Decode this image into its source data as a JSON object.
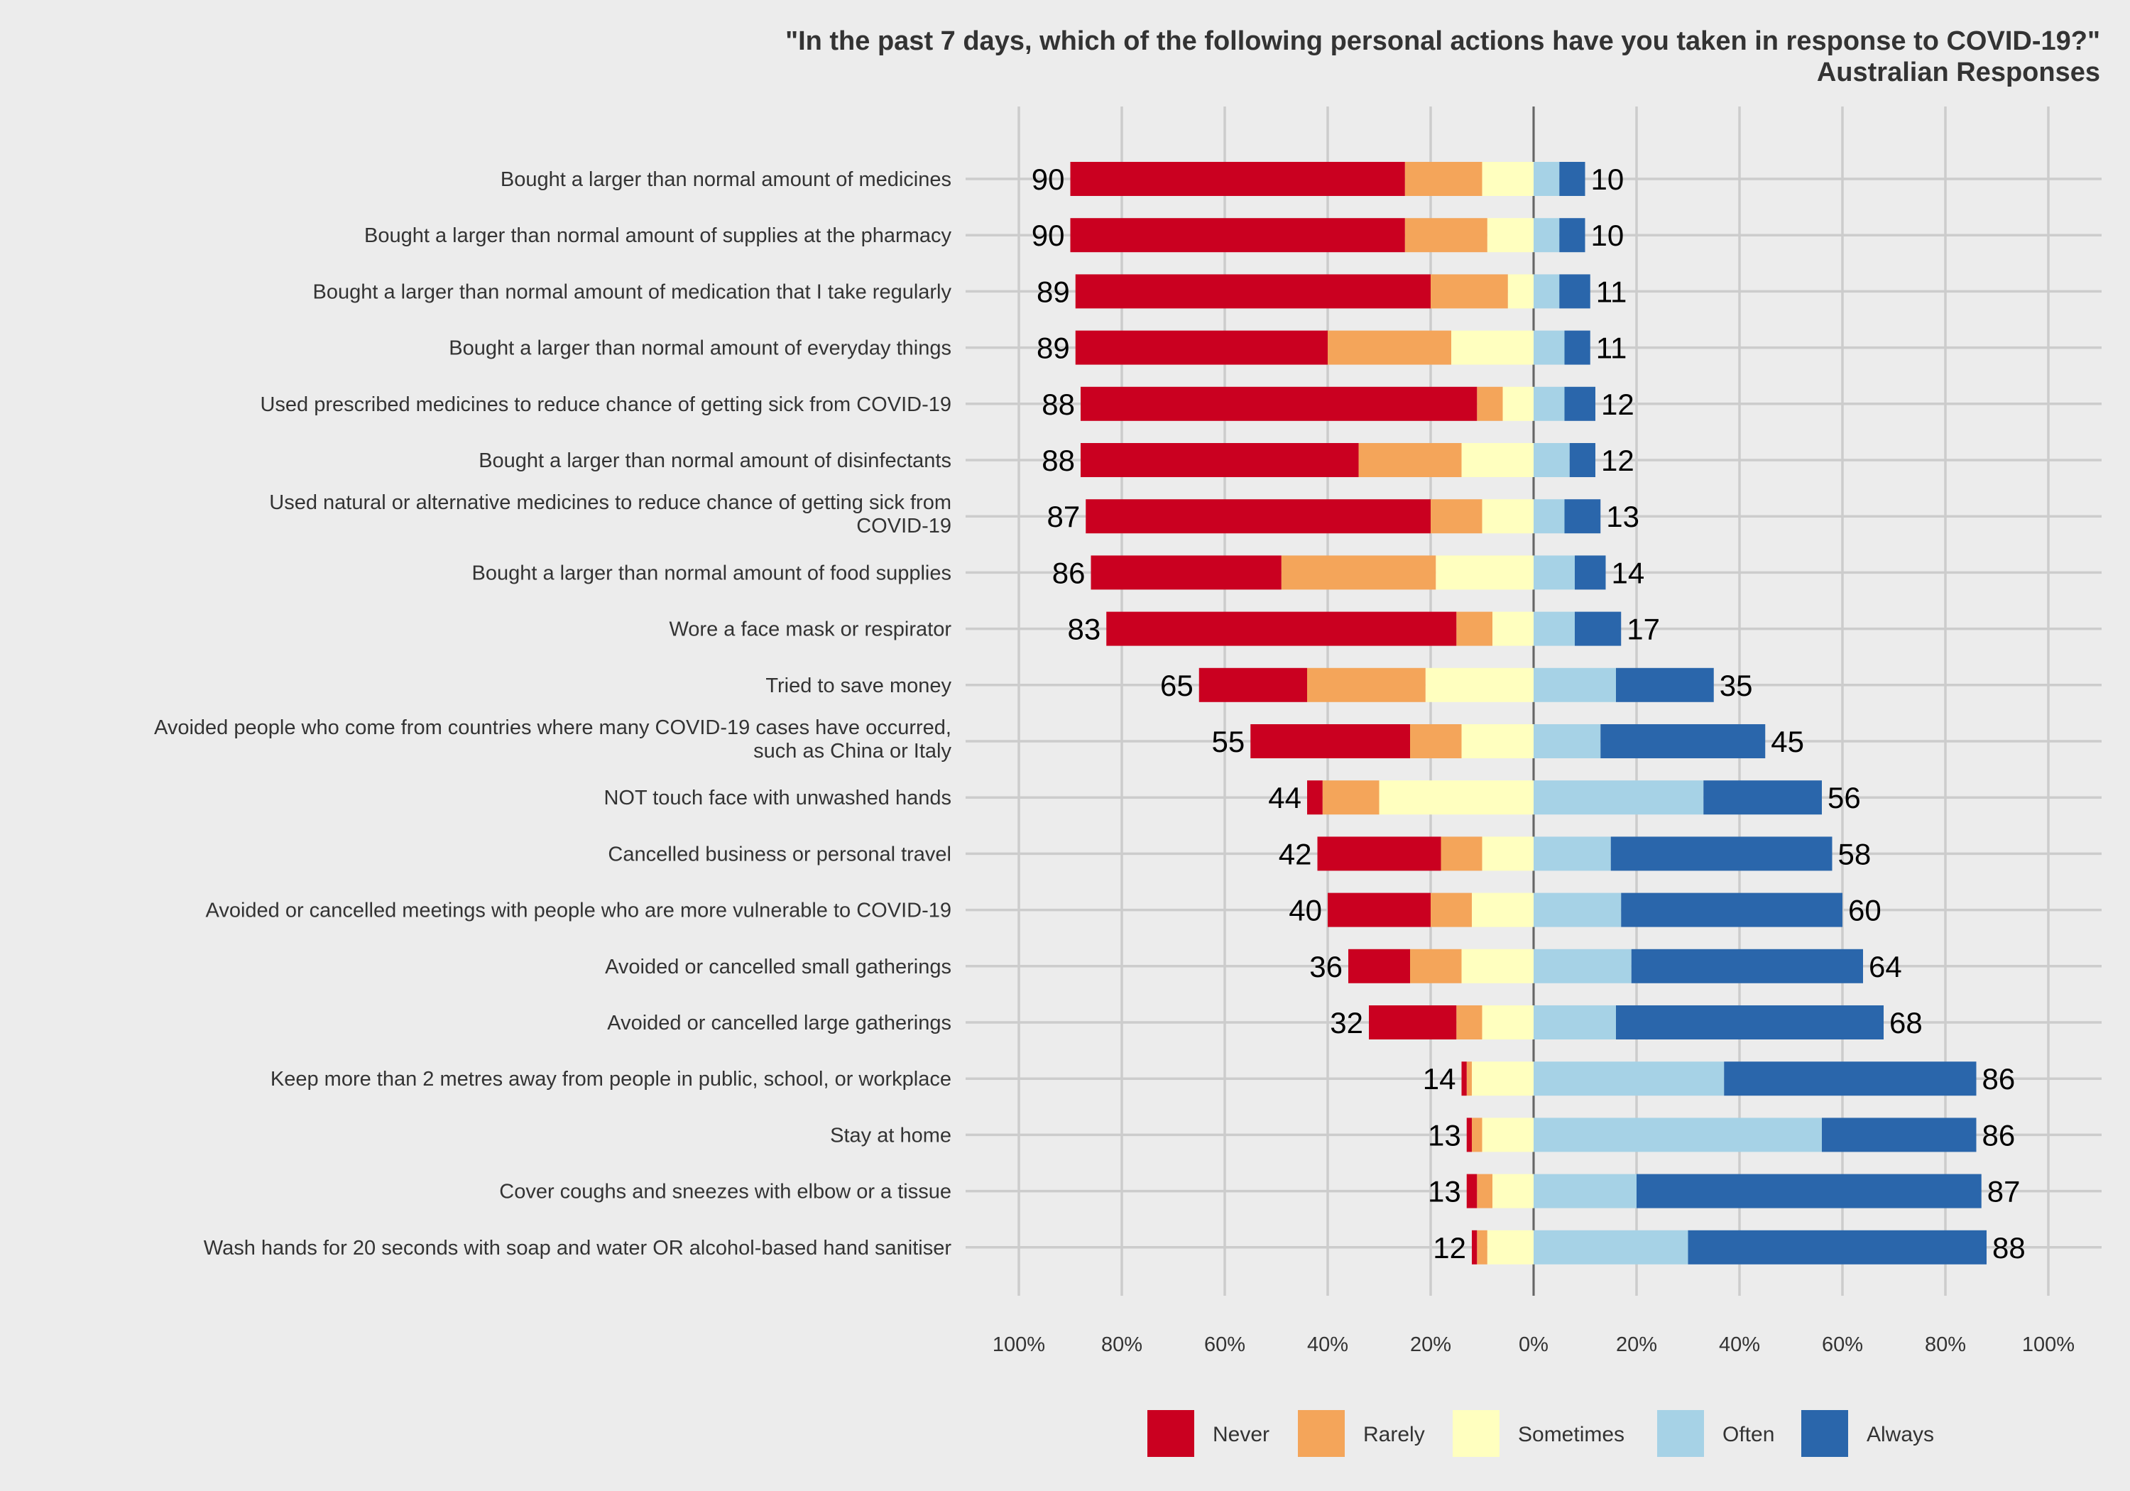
{
  "chart_data": {
    "type": "bar",
    "orientation": "horizontal",
    "stacked": "diverging",
    "title": "\"In the past 7 days, which of the following personal actions have you taken in response to COVID-19?\"",
    "subtitle": "Australian Responses",
    "xlim": [
      -100,
      100
    ],
    "x_ticks": [
      "100%",
      "80%",
      "60%",
      "40%",
      "20%",
      "0%",
      "20%",
      "40%",
      "60%",
      "80%",
      "100%"
    ],
    "grid": true,
    "legend_position": "bottom",
    "series": [
      {
        "name": "Never",
        "color": "#ca0020",
        "values": [
          65,
          65,
          69,
          49,
          77,
          54,
          67,
          37,
          68,
          21,
          31,
          3,
          24,
          20,
          12,
          17,
          1,
          1,
          2,
          1
        ]
      },
      {
        "name": "Rarely",
        "color": "#f4a55a",
        "values": [
          15,
          16,
          15,
          24,
          5,
          20,
          10,
          30,
          7,
          23,
          10,
          11,
          8,
          8,
          10,
          5,
          1,
          2,
          3,
          2
        ]
      },
      {
        "name": "Sometimes",
        "color": "#ffffbf",
        "values": [
          10,
          9,
          5,
          16,
          6,
          14,
          10,
          19,
          8,
          21,
          14,
          30,
          10,
          12,
          14,
          10,
          12,
          10,
          8,
          9
        ]
      },
      {
        "name": "Often",
        "color": "#a6d2e6",
        "values": [
          5,
          5,
          5,
          6,
          6,
          7,
          6,
          8,
          8,
          16,
          13,
          33,
          15,
          17,
          19,
          16,
          37,
          56,
          20,
          30
        ]
      },
      {
        "name": "Always",
        "color": "#2a66ab",
        "values": [
          5,
          5,
          6,
          5,
          6,
          5,
          7,
          6,
          9,
          19,
          32,
          23,
          43,
          43,
          45,
          52,
          49,
          30,
          67,
          58
        ]
      }
    ],
    "rows": [
      {
        "label": "Bought a larger than normal amount of medicines",
        "neg_label": "90",
        "pos_label": "10"
      },
      {
        "label": "Bought a larger than normal amount of supplies at the pharmacy",
        "neg_label": "90",
        "pos_label": "10"
      },
      {
        "label": "Bought a larger than normal amount of medication that I take regularly",
        "neg_label": "89",
        "pos_label": "11"
      },
      {
        "label": "Bought a larger than normal amount of everyday things",
        "neg_label": "89",
        "pos_label": "11"
      },
      {
        "label": "Used prescribed medicines to reduce chance of getting sick from COVID-19",
        "neg_label": "88",
        "pos_label": "12"
      },
      {
        "label": "Bought a larger than normal amount of disinfectants",
        "neg_label": "88",
        "pos_label": "12"
      },
      {
        "label": [
          "Used natural or alternative medicines to reduce chance of getting sick from",
          "COVID-19"
        ],
        "neg_label": "87",
        "pos_label": "13"
      },
      {
        "label": "Bought a larger than normal amount of food supplies",
        "neg_label": "86",
        "pos_label": "14"
      },
      {
        "label": "Wore a face mask or respirator",
        "neg_label": "83",
        "pos_label": "17"
      },
      {
        "label": "Tried to save money",
        "neg_label": "65",
        "pos_label": "35"
      },
      {
        "label": [
          "Avoided people who come from countries where many COVID-19 cases have occurred,",
          "such as China or Italy"
        ],
        "neg_label": "55",
        "pos_label": "45"
      },
      {
        "label": "NOT touch face with unwashed hands",
        "neg_label": "44",
        "pos_label": "56"
      },
      {
        "label": "Cancelled business or personal travel",
        "neg_label": "42",
        "pos_label": "58"
      },
      {
        "label": "Avoided or cancelled meetings with people who are more vulnerable to COVID-19",
        "neg_label": "40",
        "pos_label": "60"
      },
      {
        "label": "Avoided or cancelled small gatherings",
        "neg_label": "36",
        "pos_label": "64"
      },
      {
        "label": "Avoided or cancelled large gatherings",
        "neg_label": "32",
        "pos_label": "68"
      },
      {
        "label": "Keep more than 2 metres away from people in public, school, or workplace",
        "neg_label": "14",
        "pos_label": "86"
      },
      {
        "label": "Stay at home",
        "neg_label": "13",
        "pos_label": "86"
      },
      {
        "label": "Cover coughs and sneezes with elbow or a tissue",
        "neg_label": "13",
        "pos_label": "87"
      },
      {
        "label": "Wash hands for 20 seconds with soap and water OR alcohol-based hand sanitiser",
        "neg_label": "12",
        "pos_label": "88"
      }
    ]
  }
}
